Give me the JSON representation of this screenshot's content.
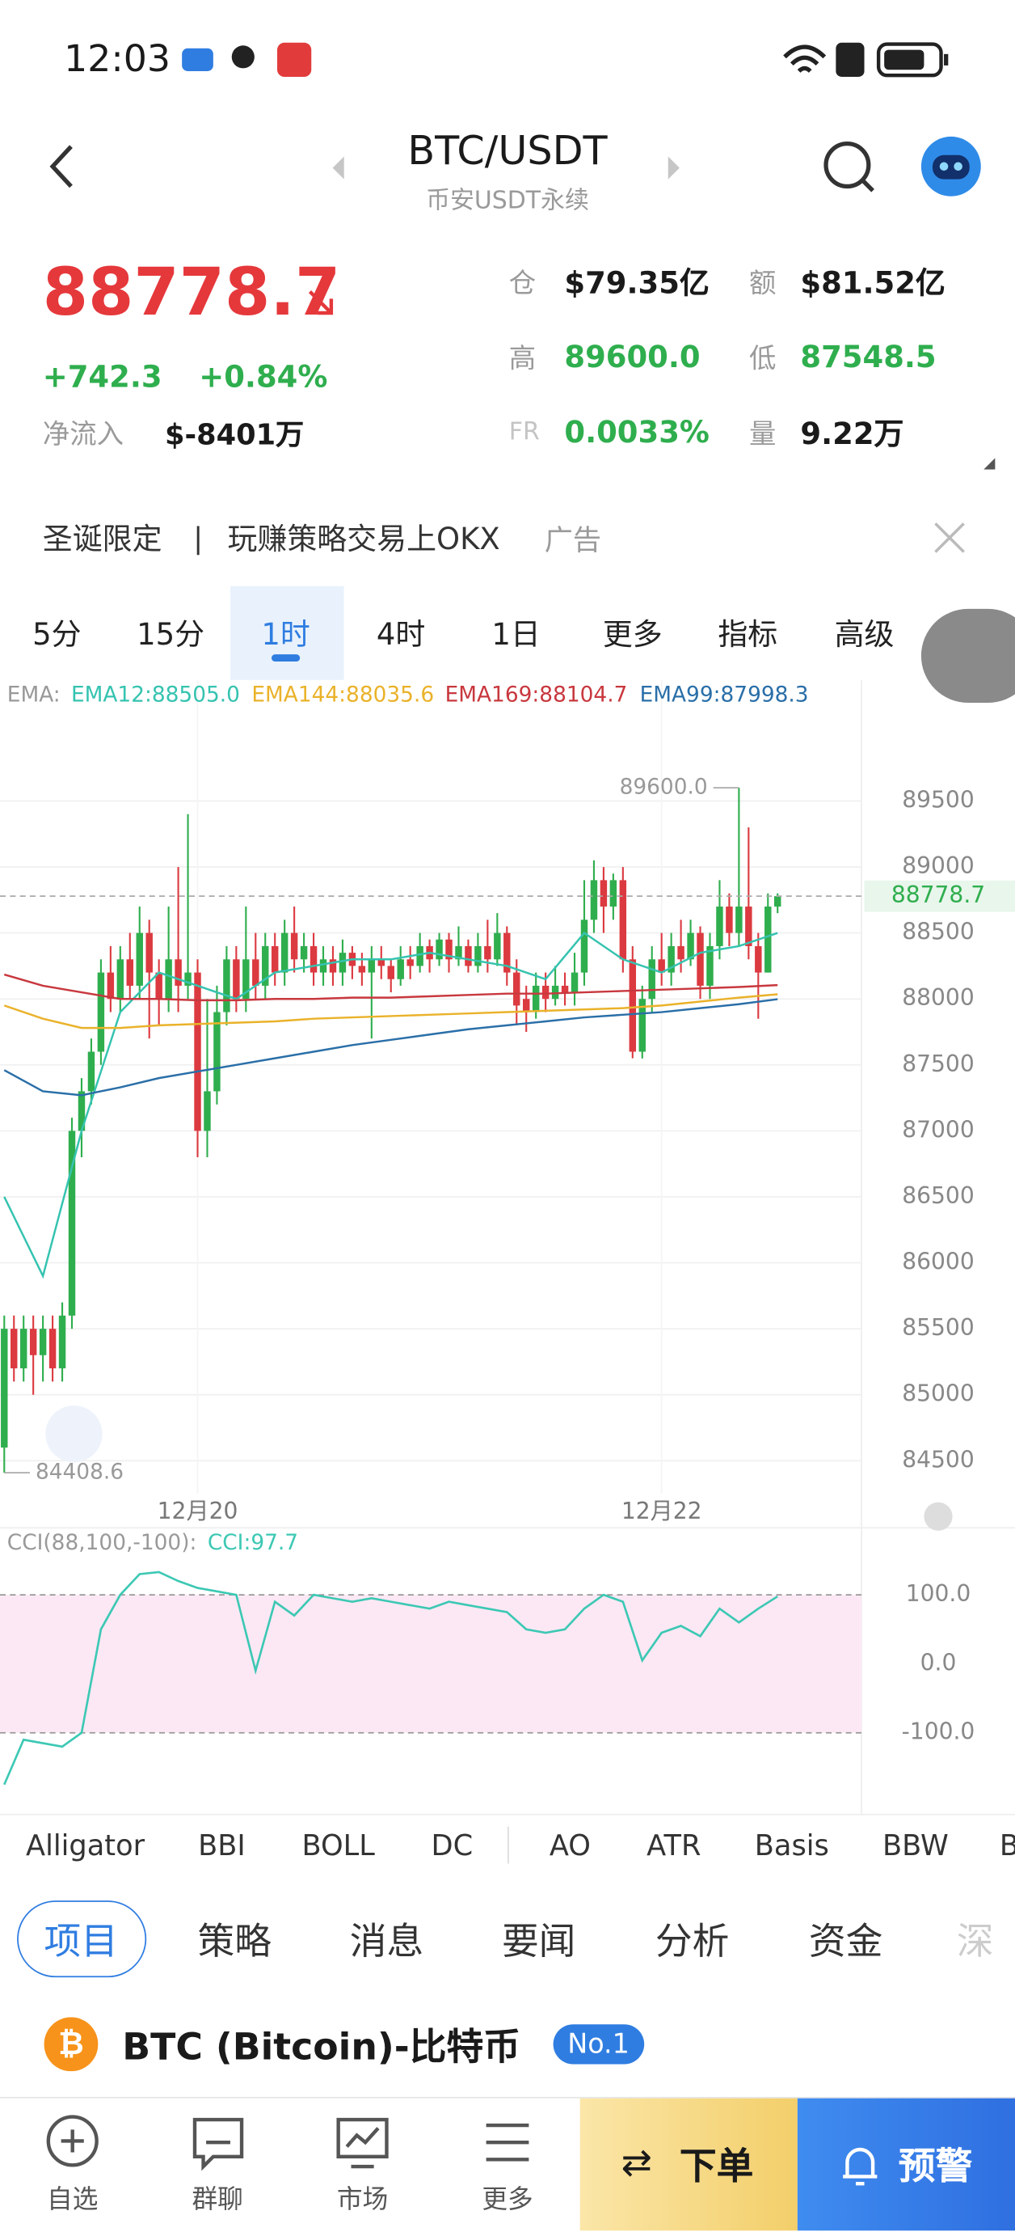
{
  "status_bar": {
    "time": "12:03"
  },
  "header": {
    "title": "BTC/USDT",
    "subtitle": "币安USDT永续"
  },
  "ticker": {
    "price": "88778.7",
    "change": "+742.3",
    "change_pct": "+0.84%",
    "net_flow_label": "净流入",
    "net_flow": "$-8401万",
    "stats": [
      {
        "label": "仓",
        "value": "$79.35亿"
      },
      {
        "label": "额",
        "value": "$81.52亿"
      },
      {
        "label": "高",
        "value": "89600.0"
      },
      {
        "label": "低",
        "value": "87548.5"
      },
      {
        "label": "FR",
        "value": "0.0033%"
      },
      {
        "label": "量",
        "value": "9.22万"
      }
    ]
  },
  "banner": {
    "tag": "圣诞限定",
    "text": "玩赚策略交易上OKX",
    "ad": "广告"
  },
  "timeframes": [
    "5分",
    "15分",
    "1时",
    "4时",
    "1日",
    "更多",
    "指标",
    "高级"
  ],
  "chart": {
    "type": "candlestick",
    "ema_prefix": "EMA:",
    "categories": [
      null,
      null,
      null,
      null,
      null,
      null,
      null,
      null,
      null,
      null,
      null,
      null,
      null,
      null,
      null,
      null,
      null,
      null,
      null,
      null,
      "12月20",
      null,
      null,
      null,
      null,
      null,
      null,
      null,
      null,
      null,
      null,
      null,
      null,
      null,
      null,
      null,
      null,
      null,
      null,
      null,
      null,
      null,
      null,
      null,
      null,
      null,
      null,
      null,
      null,
      null,
      null,
      null,
      null,
      null,
      null,
      null,
      null,
      null,
      null,
      null,
      null,
      null,
      null,
      null,
      null,
      null,
      null,
      null,
      "12月22",
      null,
      null,
      null,
      null,
      null,
      null,
      null,
      null,
      null,
      null,
      null,
      null
    ],
    "candles": [
      [
        84600,
        85600,
        84408.6,
        85500
      ],
      [
        85500,
        85600,
        85100,
        85200
      ],
      [
        85200,
        85600,
        85100,
        85500
      ],
      [
        85500,
        85600,
        85000,
        85300
      ],
      [
        85300,
        85600,
        85100,
        85500
      ],
      [
        85500,
        85600,
        85100,
        85200
      ],
      [
        85200,
        85700,
        85100,
        85600
      ],
      [
        85600,
        87100,
        85500,
        87000
      ],
      [
        87000,
        87400,
        86800,
        87300
      ],
      [
        87300,
        87700,
        87200,
        87600
      ],
      [
        87600,
        88300,
        87500,
        88200
      ],
      [
        88200,
        88400,
        87900,
        88000
      ],
      [
        88000,
        88400,
        87900,
        88300
      ],
      [
        88300,
        88500,
        88000,
        88100
      ],
      [
        88100,
        88700,
        88000,
        88500
      ],
      [
        88500,
        88600,
        87700,
        88200
      ],
      [
        88200,
        88300,
        87800,
        88000
      ],
      [
        88000,
        88700,
        87900,
        88300
      ],
      [
        88300,
        89000,
        87900,
        88100
      ],
      [
        88100,
        89400,
        88000,
        88200
      ],
      [
        88200,
        88300,
        86800,
        87000
      ],
      [
        87000,
        88000,
        86800,
        87300
      ],
      [
        87300,
        88100,
        87200,
        87900
      ],
      [
        87900,
        88400,
        87800,
        88300
      ],
      [
        88300,
        88400,
        87900,
        88000
      ],
      [
        88000,
        88700,
        87900,
        88300
      ],
      [
        88300,
        88500,
        88000,
        88100
      ],
      [
        88100,
        88500,
        88000,
        88400
      ],
      [
        88400,
        88500,
        88100,
        88200
      ],
      [
        88200,
        88600,
        88100,
        88500
      ],
      [
        88500,
        88700,
        88200,
        88300
      ],
      [
        88300,
        88500,
        88200,
        88400
      ],
      [
        88400,
        88500,
        88100,
        88200
      ],
      [
        88200,
        88400,
        88100,
        88300
      ],
      [
        88300,
        88400,
        88100,
        88200
      ],
      [
        88200,
        88450,
        88100,
        88350
      ],
      [
        88350,
        88400,
        88150,
        88250
      ],
      [
        88250,
        88350,
        88100,
        88200
      ],
      [
        88200,
        88400,
        87700,
        88300
      ],
      [
        88300,
        88400,
        88150,
        88250
      ],
      [
        88250,
        88300,
        88050,
        88150
      ],
      [
        88150,
        88400,
        88100,
        88300
      ],
      [
        88300,
        88400,
        88150,
        88250
      ],
      [
        88250,
        88500,
        88200,
        88400
      ],
      [
        88400,
        88450,
        88200,
        88300
      ],
      [
        88300,
        88500,
        88250,
        88450
      ],
      [
        88450,
        88500,
        88200,
        88300
      ],
      [
        88300,
        88550,
        88250,
        88400
      ],
      [
        88400,
        88450,
        88200,
        88250
      ],
      [
        88250,
        88500,
        88200,
        88400
      ],
      [
        88400,
        88600,
        88200,
        88300
      ],
      [
        88300,
        88650,
        88250,
        88500
      ],
      [
        88500,
        88550,
        88100,
        88200
      ],
      [
        88200,
        88300,
        87800,
        87950
      ],
      [
        88000,
        88100,
        87750,
        87900
      ],
      [
        87900,
        88200,
        87850,
        88100
      ],
      [
        88100,
        88200,
        87900,
        88000
      ],
      [
        88000,
        88250,
        87950,
        88100
      ],
      [
        88100,
        88200,
        87950,
        88050
      ],
      [
        88050,
        88350,
        87950,
        88200
      ],
      [
        88200,
        88900,
        88100,
        88600
      ],
      [
        88600,
        89050,
        88500,
        88900
      ],
      [
        88900,
        89000,
        88500,
        88700
      ],
      [
        88700,
        88950,
        88600,
        88900
      ],
      [
        88900,
        89000,
        88200,
        88300
      ],
      [
        88300,
        88400,
        87550,
        87600
      ],
      [
        87600,
        88100,
        87548.5,
        88000
      ],
      [
        88000,
        88400,
        87900,
        88300
      ],
      [
        88300,
        88500,
        88100,
        88200
      ],
      [
        88200,
        88500,
        88100,
        88400
      ],
      [
        88400,
        88600,
        88200,
        88300
      ],
      [
        88300,
        88600,
        88250,
        88500
      ],
      [
        88500,
        88550,
        88000,
        88100
      ],
      [
        88100,
        88500,
        88000,
        88400
      ],
      [
        88400,
        88900,
        88300,
        88700
      ],
      [
        88700,
        88800,
        88400,
        88500
      ],
      [
        88500,
        89600,
        88400,
        88700
      ],
      [
        88700,
        89300,
        88300,
        88400
      ],
      [
        88400,
        88500,
        87850,
        88200
      ],
      [
        88200,
        88800,
        88200,
        88700
      ],
      [
        88700,
        88800,
        88650,
        88778.7
      ]
    ],
    "up_color": "#2fae4e",
    "down_color": "#db3a40",
    "series": [
      {
        "name": "EMA12:88505.0",
        "color": "#35c3b0",
        "values": [
          86500,
          85900,
          87000,
          87900,
          88200,
          88100,
          88000,
          88200,
          88250,
          88300,
          88300,
          88350,
          88300,
          88250,
          88150,
          88500,
          88300,
          88200,
          88350,
          88400,
          88500
        ]
      },
      {
        "name": "EMA144:88035.6",
        "color": "#eab22a",
        "values": [
          87950,
          87850,
          87780,
          87780,
          87800,
          87810,
          87820,
          87830,
          87850,
          87860,
          87870,
          87880,
          87890,
          87900,
          87910,
          87920,
          87930,
          87950,
          87980,
          88010,
          88035
        ]
      },
      {
        "name": "EMA169:88104.7",
        "color": "#c8383e",
        "values": [
          88185,
          88100,
          88050,
          88000,
          88000,
          87990,
          87990,
          88000,
          88000,
          88010,
          88010,
          88020,
          88030,
          88040,
          88040,
          88050,
          88060,
          88070,
          88080,
          88090,
          88105
        ]
      },
      {
        "name": "EMA99:87998.3",
        "color": "#2a6fa8",
        "values": [
          87460,
          87300,
          87270,
          87330,
          87400,
          87450,
          87500,
          87550,
          87600,
          87650,
          87690,
          87730,
          87770,
          87800,
          87830,
          87860,
          87880,
          87900,
          87930,
          87960,
          87998
        ]
      }
    ],
    "ylim": [
      84250,
      90180
    ],
    "yticks": [
      84500,
      85000,
      85500,
      86000,
      86500,
      87000,
      87500,
      88000,
      88500,
      89000,
      89500
    ],
    "current_price": "88778.7",
    "high_label": "89600.0",
    "low_label": "84408.6",
    "indicator": {
      "type": "line",
      "label": "CCI(88,100,-100):",
      "series": [
        {
          "name": "CCI:97.7",
          "color": "#3cc8b4",
          "values": [
            -175,
            -110,
            -115,
            -120,
            -100,
            50,
            100,
            130,
            133,
            120,
            110,
            105,
            100,
            -10,
            90,
            70,
            100,
            95,
            90,
            95,
            90,
            85,
            80,
            90,
            85,
            80,
            75,
            50,
            45,
            50,
            80,
            100,
            90,
            5,
            45,
            55,
            40,
            80,
            60,
            80,
            97.7
          ]
        }
      ],
      "ylim": [
        -207,
        195
      ],
      "yticks": [
        {
          "value": 100,
          "label": "100.0"
        },
        {
          "value": 0,
          "label": "0.0"
        },
        {
          "value": -100,
          "label": "-100.0"
        }
      ]
    }
  },
  "indicators": [
    "Alligator",
    "BBI",
    "BOLL",
    "DC",
    "AO",
    "ATR",
    "Basis",
    "BBW",
    "B"
  ],
  "tabs": [
    "项目",
    "策略",
    "消息",
    "要闻",
    "分析",
    "资金",
    "深"
  ],
  "coin": {
    "name": "BTC (Bitcoin)-比特币",
    "rank": "No.1"
  },
  "bottom_nav": {
    "items": [
      "自选",
      "群聊",
      "市场",
      "更多"
    ],
    "order": "下单",
    "alert": "预警"
  }
}
